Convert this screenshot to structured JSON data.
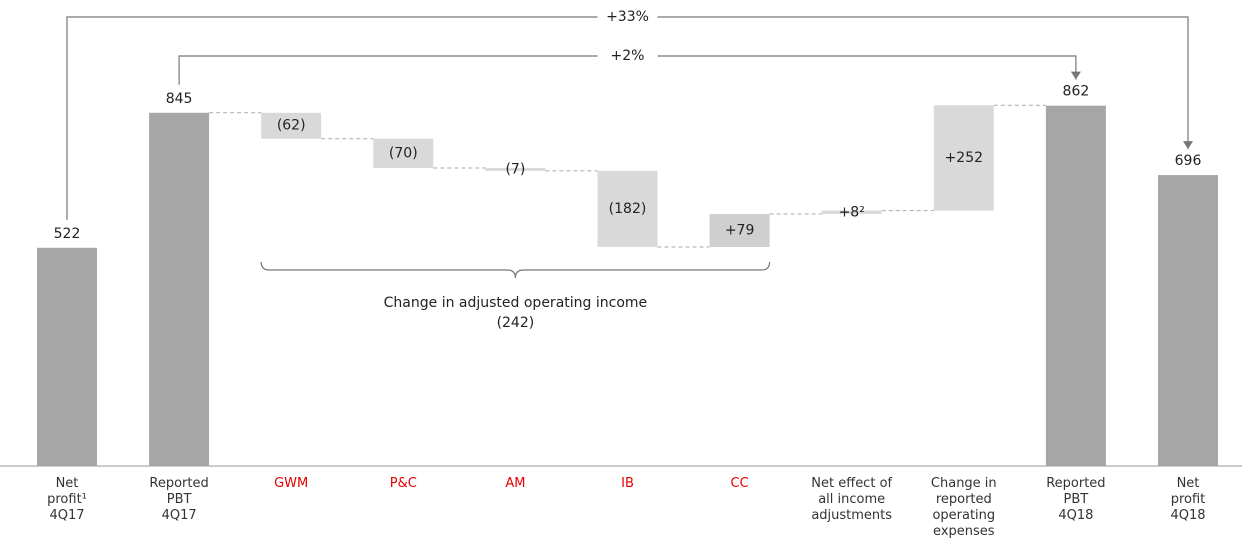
{
  "chart_data": {
    "type": "waterfall",
    "categories": [
      "Net\nprofit¹\n4Q17",
      "Reported\nPBT\n4Q17",
      "GWM",
      "P&C",
      "AM",
      "IB",
      "CC",
      "Net effect of\nall income\nadjustments",
      "Change in\nreported\noperating\nexpenses",
      "Reported\nPBT\n4Q18",
      "Net\nprofit\n4Q18"
    ],
    "values": [
      522,
      845,
      -62,
      -70,
      -7,
      -182,
      79,
      8,
      252,
      862,
      696
    ],
    "value_labels": [
      "522",
      "845",
      "(62)",
      "(70)",
      "(7)",
      "(182)",
      "+79",
      "+8²",
      "+252",
      "862",
      "696"
    ],
    "measures": [
      "absolute",
      "absolute",
      "relative",
      "relative",
      "relative",
      "relative",
      "relative",
      "relative",
      "relative",
      "absolute",
      "absolute"
    ],
    "colors": [
      "#a6a6a6",
      "#a6a6a6",
      "#d9d9d9",
      "#d9d9d9",
      "#d9d9d9",
      "#d9d9d9",
      "#cfcfcf",
      "#d9d9d9",
      "#d9d9d9",
      "#a6a6a6",
      "#a6a6a6"
    ],
    "label_colors": [
      "#333333",
      "#333333",
      "#e60000",
      "#e60000",
      "#e60000",
      "#e60000",
      "#e60000",
      "#333333",
      "#333333",
      "#333333",
      "#333333"
    ],
    "ylim": [
      0,
      1000
    ],
    "annotations": [
      {
        "text": "+33%",
        "from": 0,
        "to": 10
      },
      {
        "text": "+2%",
        "from": 1,
        "to": 9
      }
    ],
    "brace": {
      "text": "Change in adjusted operating income",
      "label": "(242)",
      "from": 2,
      "to": 6
    }
  }
}
